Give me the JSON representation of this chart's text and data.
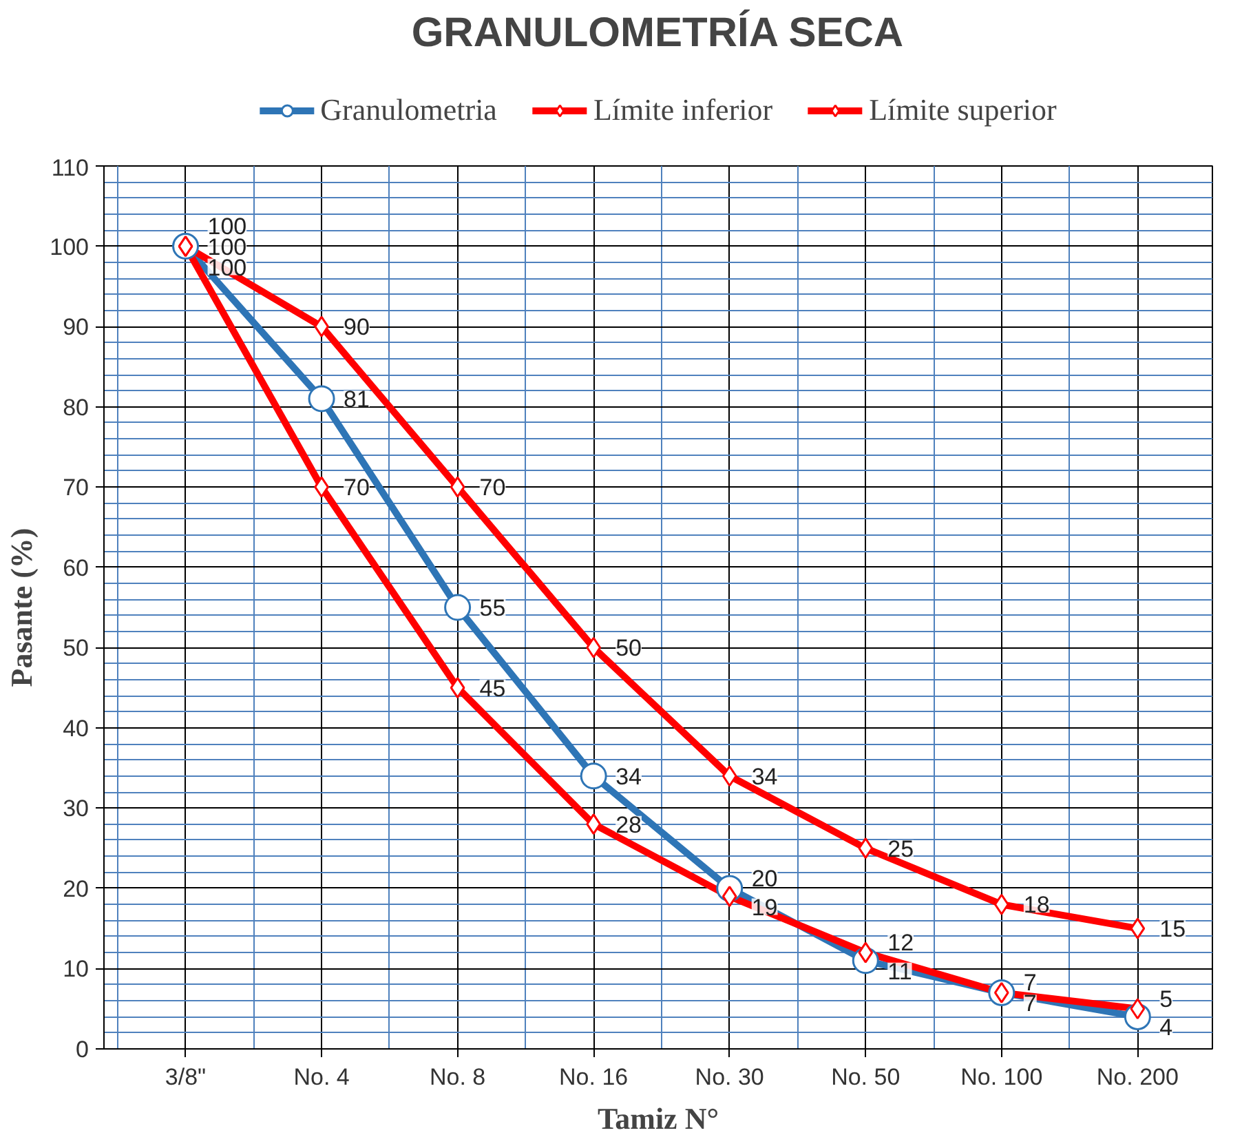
{
  "chart_data": {
    "type": "line",
    "title": "GRANULOMETRÍA SECA",
    "xlabel": "Tamiz N°",
    "ylabel": "Pasante (%)",
    "categories": [
      "3/8\"",
      "No. 4",
      "No. 8",
      "No. 16",
      "No. 30",
      "No. 50",
      "No. 100",
      "No. 200"
    ],
    "series": [
      {
        "name": "Granulometria",
        "color": "#2e75b6",
        "marker": "circle",
        "values": [
          100,
          81,
          55,
          34,
          20,
          11,
          7,
          4
        ]
      },
      {
        "name": "Límite inferior",
        "color": "#ff0000",
        "marker": "diamond",
        "values": [
          100,
          70,
          45,
          28,
          19,
          12,
          7,
          5
        ]
      },
      {
        "name": "Límite superior",
        "color": "#ff0000",
        "marker": "diamond",
        "values": [
          100,
          90,
          70,
          50,
          34,
          25,
          18,
          15
        ]
      }
    ],
    "ylim": [
      0,
      110
    ],
    "yticks": [
      0,
      10,
      20,
      30,
      40,
      50,
      60,
      70,
      80,
      90,
      100,
      110
    ],
    "grid": true,
    "legend": "top",
    "data_labels": true,
    "line_style": "solid"
  }
}
